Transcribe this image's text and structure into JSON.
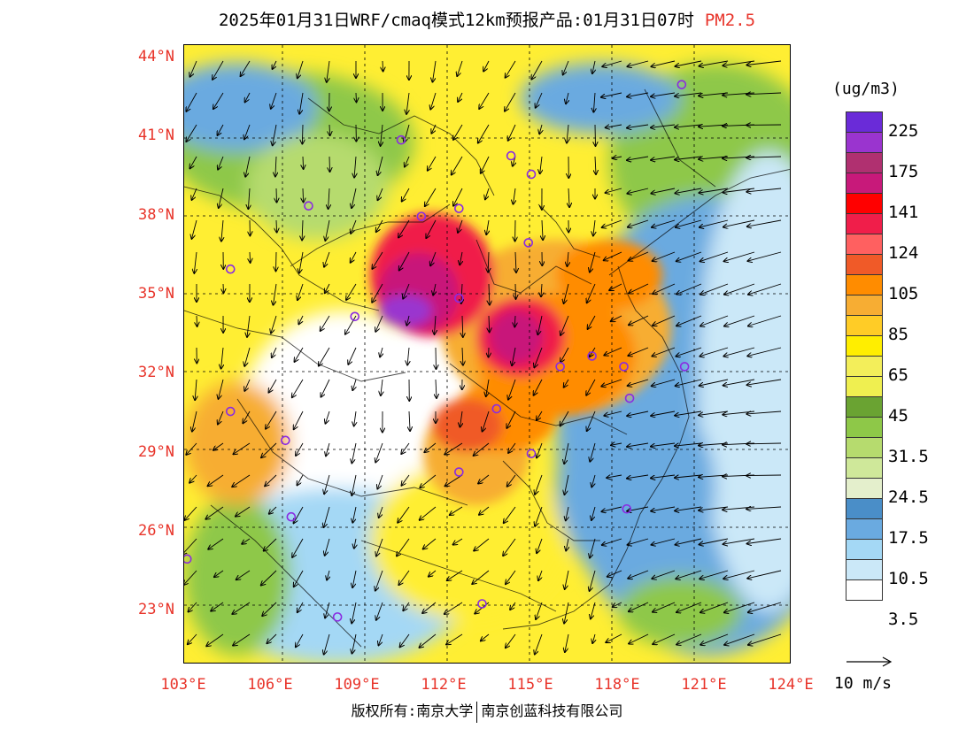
{
  "header": {
    "title": "2025年01月31日WRF/cmaq模式12km预报产品:01月31日07时",
    "pollutant": "PM2.5"
  },
  "map": {
    "lat_labels": [
      "44°N",
      "41°N",
      "38°N",
      "35°N",
      "32°N",
      "29°N",
      "26°N",
      "23°N"
    ],
    "lon_labels": [
      "103°E",
      "106°E",
      "109°E",
      "112°E",
      "115°E",
      "118°E",
      "121°E",
      "124°E"
    ],
    "lat_range": [
      21,
      44.5
    ],
    "lon_range": [
      103,
      124
    ],
    "city_markers": [
      {
        "lon": 120.2,
        "lat": 43.0
      },
      {
        "lon": 110.5,
        "lat": 40.9
      },
      {
        "lon": 114.3,
        "lat": 40.3
      },
      {
        "lon": 115.0,
        "lat": 39.6
      },
      {
        "lon": 107.3,
        "lat": 38.4
      },
      {
        "lon": 112.5,
        "lat": 38.3
      },
      {
        "lon": 111.2,
        "lat": 38.0
      },
      {
        "lon": 114.9,
        "lat": 37.0
      },
      {
        "lon": 104.6,
        "lat": 36.0
      },
      {
        "lon": 112.5,
        "lat": 34.9
      },
      {
        "lon": 108.9,
        "lat": 34.2
      },
      {
        "lon": 117.1,
        "lat": 32.7
      },
      {
        "lon": 118.2,
        "lat": 32.3
      },
      {
        "lon": 116.0,
        "lat": 32.3
      },
      {
        "lon": 120.3,
        "lat": 32.3
      },
      {
        "lon": 104.6,
        "lat": 30.6
      },
      {
        "lon": 113.8,
        "lat": 30.7
      },
      {
        "lon": 118.4,
        "lat": 31.1
      },
      {
        "lon": 106.5,
        "lat": 29.5
      },
      {
        "lon": 115.0,
        "lat": 29.0
      },
      {
        "lon": 112.5,
        "lat": 28.3
      },
      {
        "lon": 106.7,
        "lat": 26.6
      },
      {
        "lon": 118.3,
        "lat": 26.9
      },
      {
        "lon": 103.1,
        "lat": 25.0
      },
      {
        "lon": 108.3,
        "lat": 22.8
      },
      {
        "lon": 113.3,
        "lat": 23.3
      }
    ]
  },
  "legend": {
    "unit": "(ug/m3)",
    "colors": [
      "#6a2bd8",
      "#9a34cf",
      "#b03070",
      "#c8197a",
      "#ff0000",
      "#f01e4a",
      "#ff6060",
      "#f05a28",
      "#ff8c00",
      "#f7ad33",
      "#ffcc26",
      "#ffee00",
      "#f3ee5a",
      "#efef50",
      "#6aa332",
      "#8ec848",
      "#b6db6e",
      "#cfe89a",
      "#e4efcc",
      "#4a8ec8",
      "#6aaae0",
      "#a4d8f5",
      "#cbe8f8",
      "#ffffff"
    ],
    "labels": [
      "225",
      "175",
      "141",
      "124",
      "105",
      "85",
      "65",
      "45",
      "31.5",
      "24.5",
      "17.5",
      "10.5",
      "3.5"
    ]
  },
  "wind_reference": {
    "label": "10 m/s",
    "speed": 10
  },
  "footer": {
    "copyright_left": "版权所有:南京大学",
    "copyright_right": "南京创蓝科技有限公司"
  }
}
